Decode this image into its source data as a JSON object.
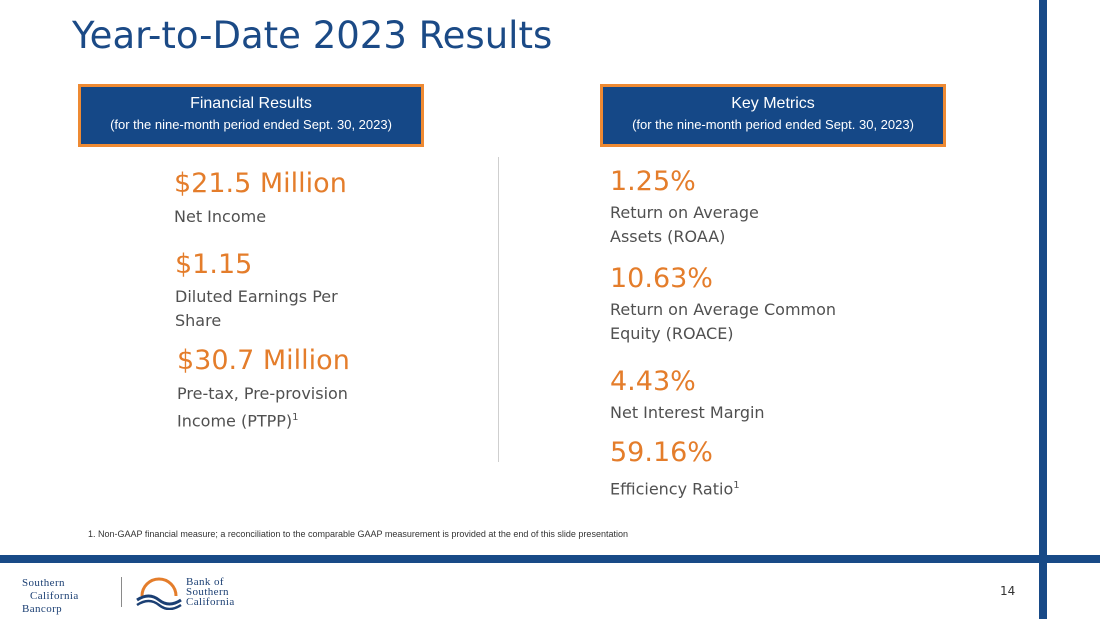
{
  "title": "Year-to-Date 2023 Results",
  "left_header": {
    "title": "Financial Results",
    "subtitle": "(for the nine-month period ended Sept. 30, 2023)"
  },
  "right_header": {
    "title": "Key Metrics",
    "subtitle": "(for the nine-month period ended Sept. 30, 2023)"
  },
  "financial_results": [
    {
      "value": "$21.5 Million",
      "label": "Net Income"
    },
    {
      "value": "$1.15",
      "label_lines": [
        "Diluted Earnings Per",
        "Share"
      ]
    },
    {
      "value": "$30.7 Million",
      "label_lines": [
        "Pre-tax, Pre-provision",
        "Income (PTPP)"
      ],
      "footnote_mark": "1"
    }
  ],
  "key_metrics": [
    {
      "value": "1.25%",
      "label_lines": [
        "Return on Average",
        "Assets (ROAA)"
      ]
    },
    {
      "value": "10.63%",
      "label_lines": [
        "Return on Average Common",
        "Equity (ROACE)"
      ]
    },
    {
      "value": "4.43%",
      "label": "Net Interest Margin"
    },
    {
      "value": "59.16%",
      "label": "Efficiency Ratio",
      "footnote_mark": "1"
    }
  ],
  "footnote": "1.  Non-GAAP financial measure; a reconciliation to the comparable GAAP measurement is provided at the end of this slide presentation",
  "page_number": "14",
  "logo_left": [
    "Southern",
    "California",
    "Bancorp"
  ],
  "logo_right": [
    "Bank of",
    "Southern",
    "California"
  ],
  "colors": {
    "brand_blue": "#184a87",
    "accent_orange": "#e47d2b"
  }
}
